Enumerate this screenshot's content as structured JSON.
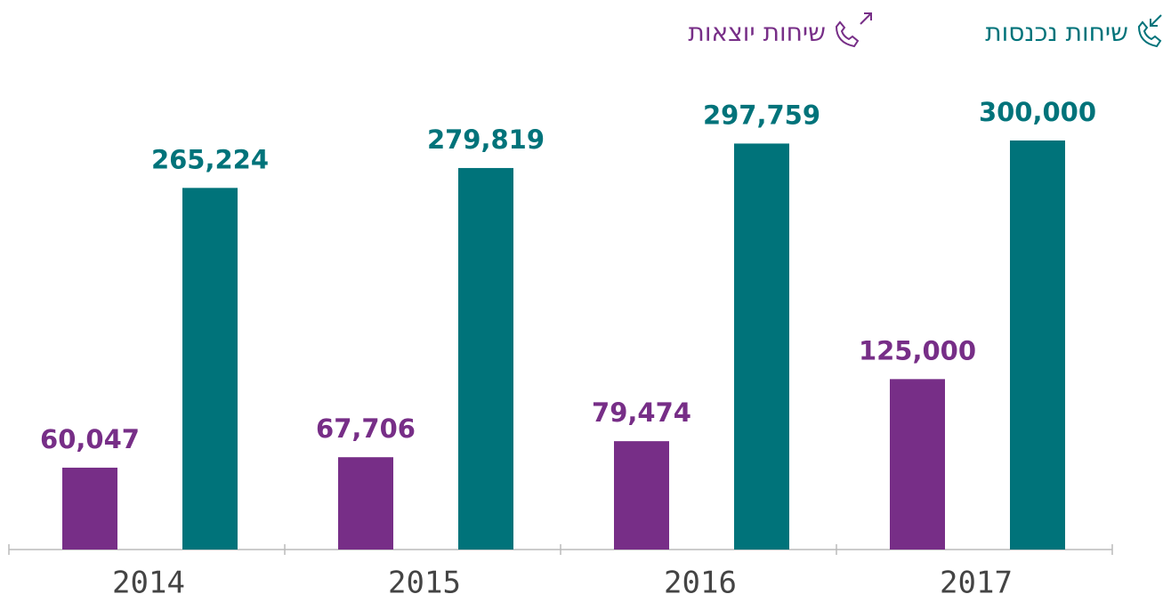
{
  "chart_data": {
    "type": "bar",
    "categories": [
      "2014",
      "2015",
      "2016",
      "2017"
    ],
    "series": [
      {
        "name": "שיחות יוצאות",
        "color": "#772e87",
        "values": [
          60047,
          67706,
          79474,
          125000
        ],
        "value_labels": [
          "60,047",
          "67,706",
          "79,474",
          "125,000"
        ]
      },
      {
        "name": "שיחות נכנסות",
        "color": "#00737a",
        "values": [
          265224,
          279819,
          297759,
          300000
        ],
        "value_labels": [
          "265,224",
          "279,819",
          "297,759",
          "300,000"
        ]
      }
    ]
  }
}
